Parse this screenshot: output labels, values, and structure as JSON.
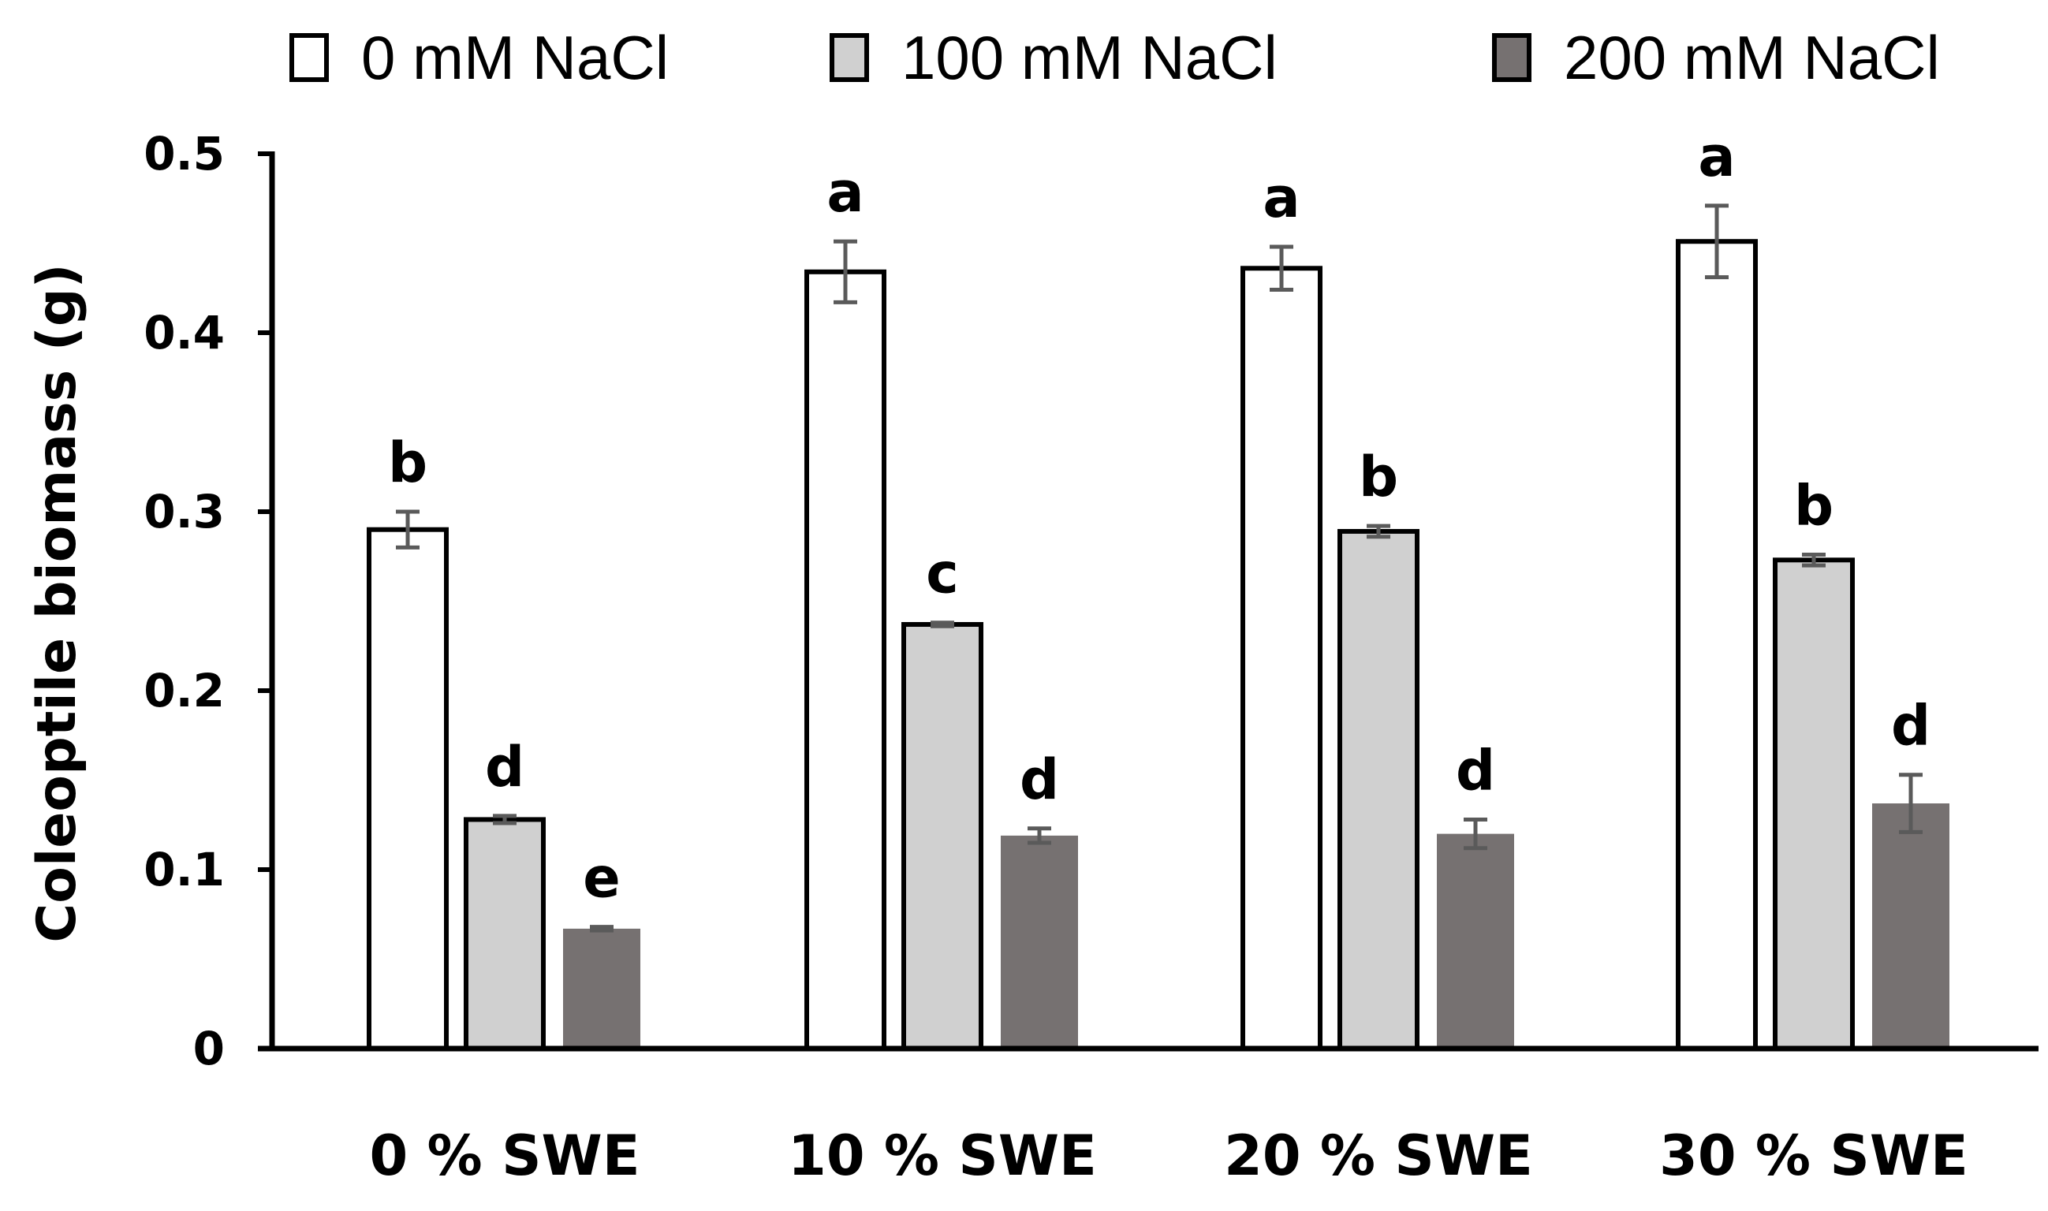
{
  "chart_data": {
    "type": "bar",
    "title": "",
    "xlabel": "",
    "ylabel": "Coleoptile biomass (g)",
    "ylim": [
      0,
      0.5
    ],
    "yticks": [
      "0",
      "0.1",
      "0.2",
      "0.3",
      "0.4",
      "0.5"
    ],
    "categories": [
      "0 % SWE",
      "10 % SWE",
      "20 % SWE",
      "30 % SWE"
    ],
    "legend_position": "top",
    "series": [
      {
        "name": "0 mM NaCl",
        "color": "#ffffff",
        "values": [
          0.29,
          0.434,
          0.436,
          0.451
        ],
        "errors": [
          0.01,
          0.017,
          0.012,
          0.02
        ],
        "letters": [
          "b",
          "a",
          "a",
          "a"
        ]
      },
      {
        "name": "100 mM NaCl",
        "color": "#d0d0d0",
        "values": [
          0.128,
          0.237,
          0.289,
          0.273
        ],
        "errors": [
          0.002,
          0.001,
          0.003,
          0.003
        ],
        "letters": [
          "d",
          "c",
          "b",
          "b"
        ]
      },
      {
        "name": "200 mM NaCl",
        "color": "#767171",
        "values": [
          0.067,
          0.119,
          0.12,
          0.137
        ],
        "errors": [
          0.001,
          0.004,
          0.008,
          0.016
        ],
        "letters": [
          "e",
          "d",
          "d",
          "d"
        ]
      }
    ]
  }
}
